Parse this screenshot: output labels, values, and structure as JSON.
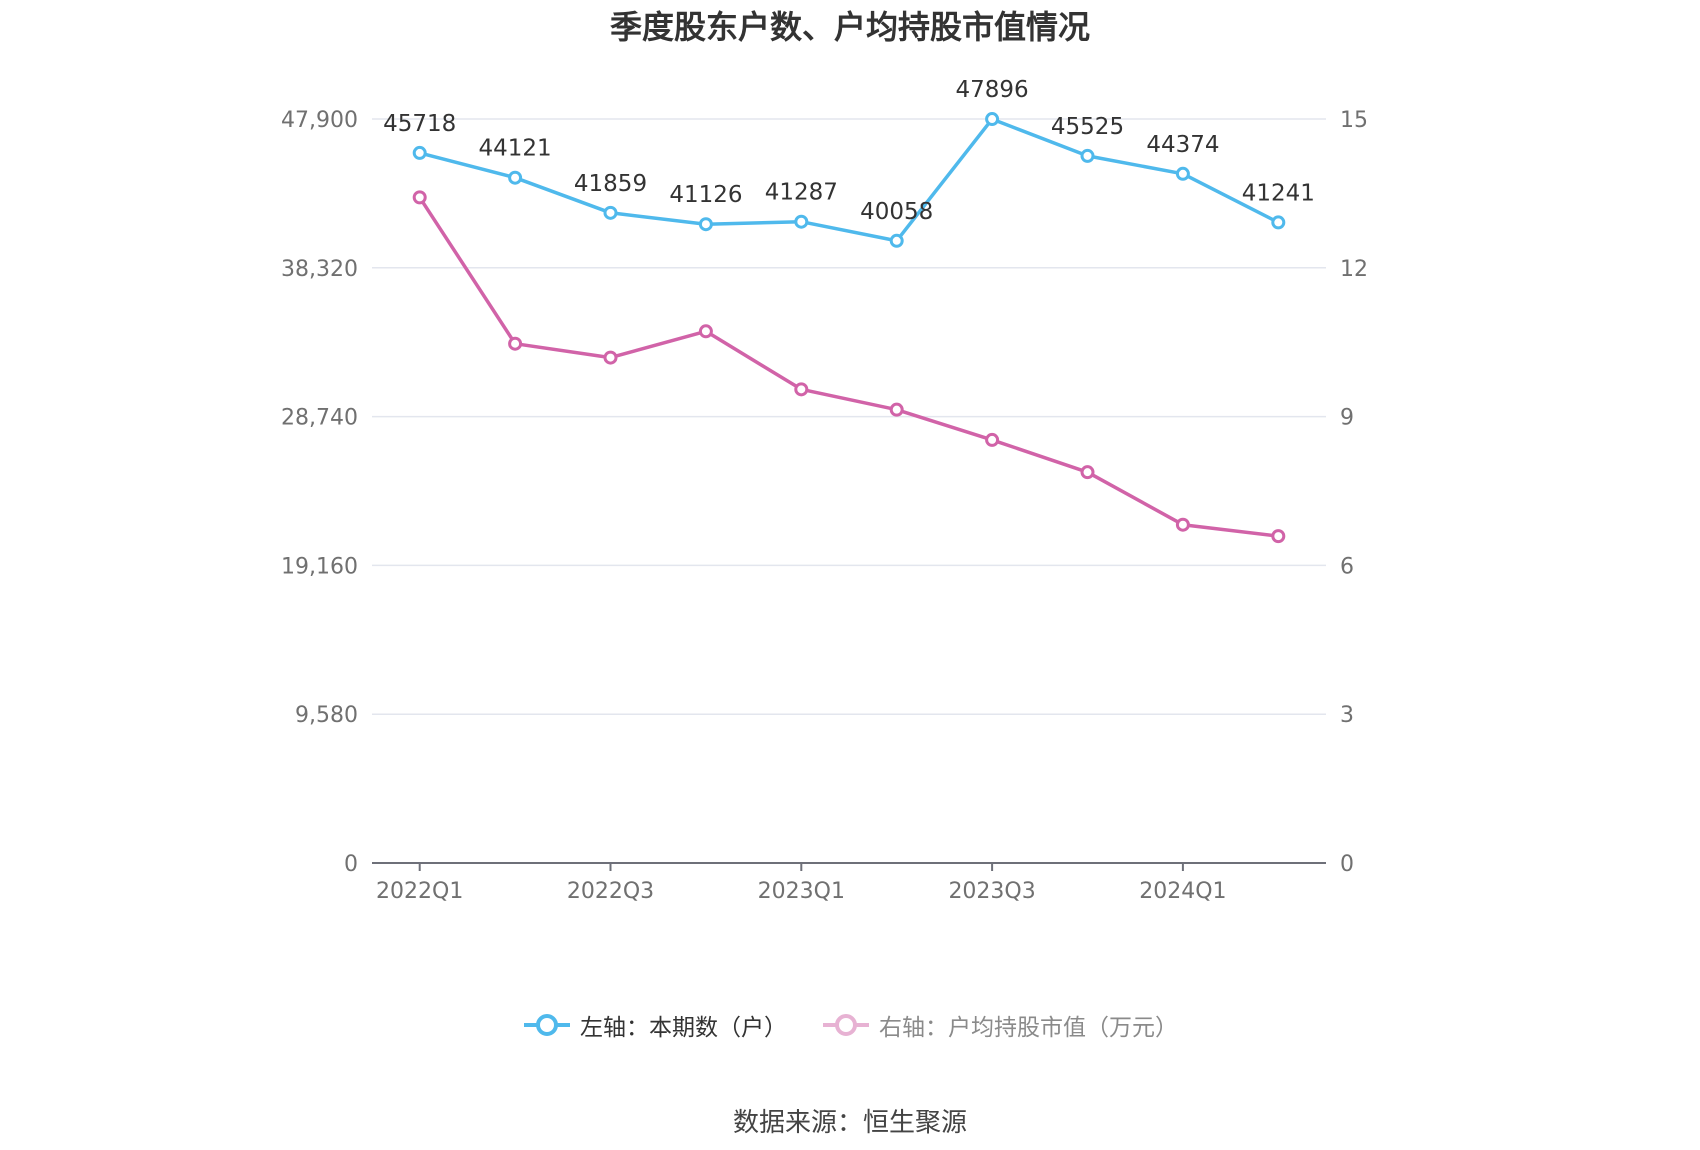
{
  "title": "季度股东户数、户均持股市值情况",
  "source": "数据来源：恒生聚源",
  "chart_data": {
    "type": "line",
    "categories": [
      "2022Q1",
      "2022Q2",
      "2022Q3",
      "2022Q4",
      "2023Q1",
      "2023Q2",
      "2023Q3",
      "2023Q4",
      "2024Q1",
      "2024Q2"
    ],
    "x_tick_labels": [
      "2022Q1",
      "",
      "2022Q3",
      "",
      "2023Q1",
      "",
      "2023Q3",
      "",
      "2024Q1",
      ""
    ],
    "left_axis": {
      "ylim": [
        0,
        47900
      ],
      "ticks": [
        "0",
        "9,580",
        "19,160",
        "28,740",
        "38,320",
        "47,900"
      ]
    },
    "right_axis": {
      "ylim": [
        0,
        15
      ],
      "ticks": [
        "0",
        "3",
        "6",
        "9",
        "12",
        "15"
      ]
    },
    "grid": true,
    "legend_position": "bottom",
    "series": [
      {
        "name": "左轴：本期数（户）",
        "axis": "left",
        "color": "#4fb9ec",
        "values": [
          45718,
          44121,
          41859,
          41126,
          41287,
          40058,
          47896,
          45525,
          44374,
          41241
        ],
        "labels": [
          "45718",
          "44121",
          "41859",
          "41126",
          "41287",
          "40058",
          "47896",
          "45525",
          "44374",
          "41241"
        ]
      },
      {
        "name": "右轴：户均持股市值（万元）",
        "axis": "right",
        "color": "#d163a8",
        "values": [
          13.42,
          10.47,
          10.19,
          10.72,
          9.55,
          9.14,
          8.53,
          7.88,
          6.82,
          6.59
        ]
      }
    ]
  }
}
